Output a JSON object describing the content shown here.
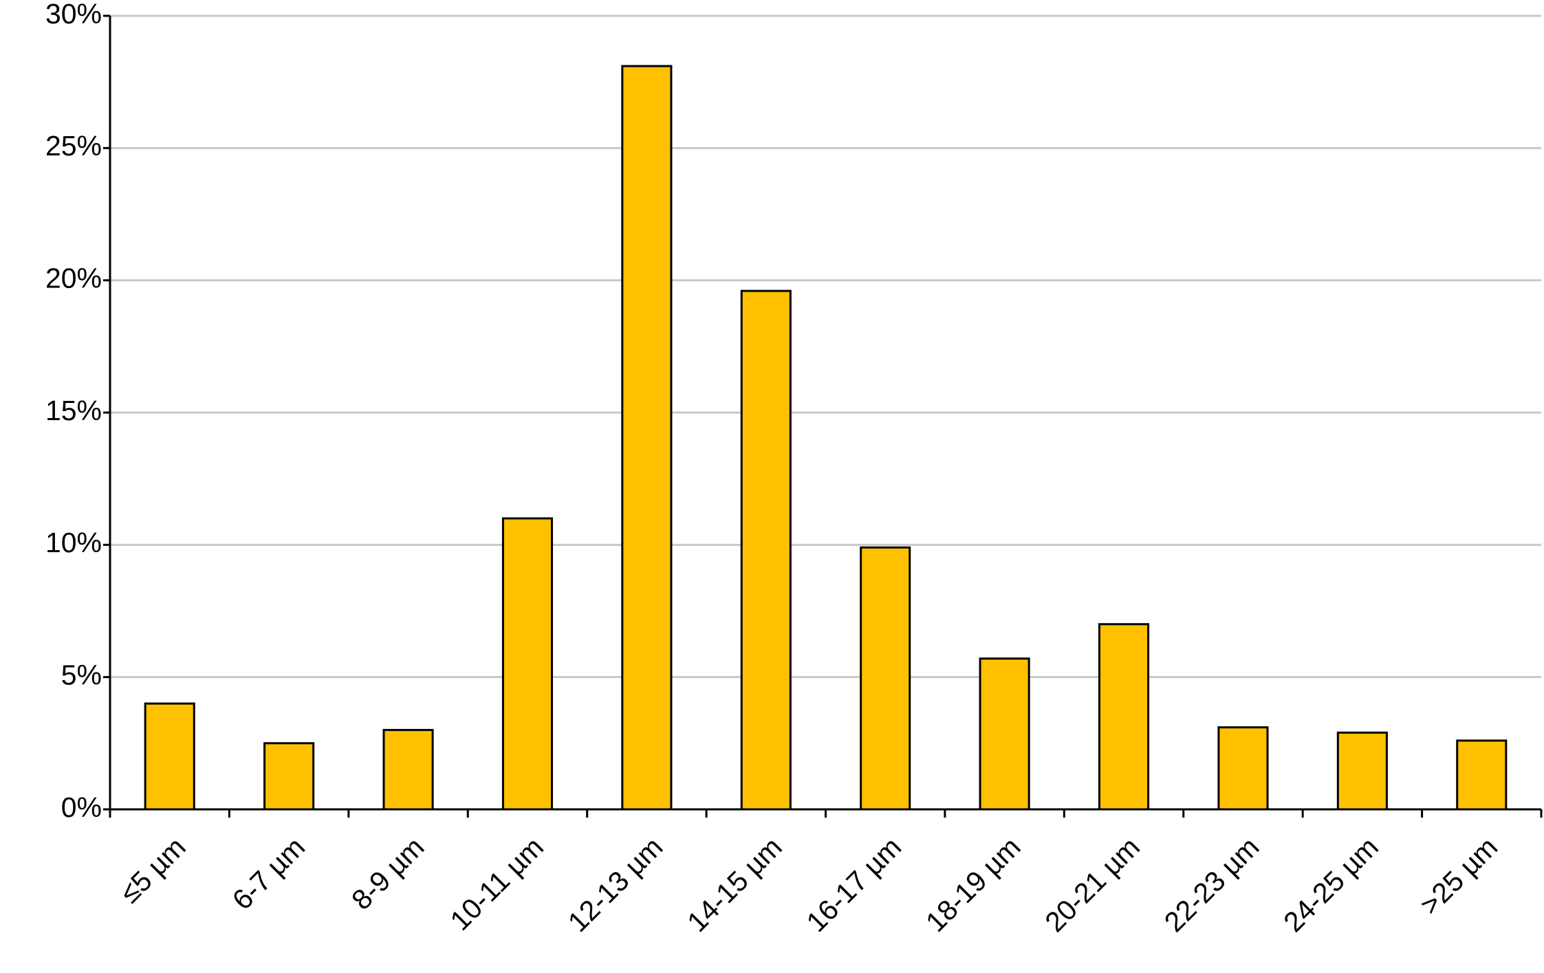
{
  "chart_data": {
    "type": "bar",
    "categories": [
      "≤5 µm",
      "6-7 µm",
      "8-9 µm",
      "10-11 µm",
      "12-13 µm",
      "14-15 µm",
      "16-17 µm",
      "18-19 µm",
      "20-21 µm",
      "22-23 µm",
      "24-25 µm",
      ">25 µm"
    ],
    "values": [
      4.0,
      2.5,
      3.0,
      11.0,
      28.1,
      19.6,
      9.9,
      5.7,
      7.0,
      3.1,
      2.9,
      2.6
    ],
    "color": "#FFC000",
    "ylim": [
      0,
      30
    ],
    "yticks": [
      {
        "value": 0,
        "label": "0%"
      },
      {
        "value": 5,
        "label": "5%"
      },
      {
        "value": 10,
        "label": "10%"
      },
      {
        "value": 15,
        "label": "15%"
      },
      {
        "value": 20,
        "label": "20%"
      },
      {
        "value": 25,
        "label": "25%"
      },
      {
        "value": 30,
        "label": "30%"
      }
    ],
    "grid": true
  }
}
